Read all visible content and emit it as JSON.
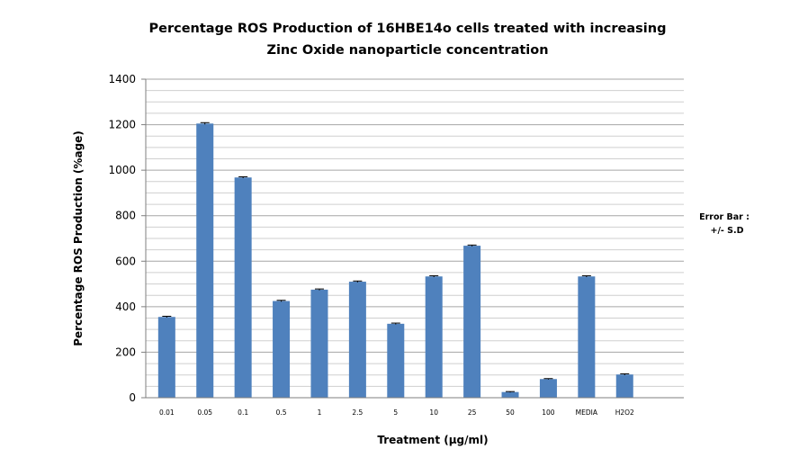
{
  "chart_data": {
    "type": "bar",
    "title": "Percentage ROS Production of 16HBE14o cells treated with increasing Zinc Oxide nanoparticle concentration",
    "title_lines": [
      "Percentage ROS Production of 16HBE14o cells treated with increasing",
      "Zinc Oxide nanoparticle concentration"
    ],
    "xlabel": "Treatment (µg/ml)",
    "ylabel": "Percentage ROS Production (%age)",
    "categories": [
      "0.01",
      "0.05",
      "0.1",
      "0.5",
      "1",
      "2.5",
      "5",
      "10",
      "25",
      "50",
      "100",
      "MEDIA",
      "H2O2"
    ],
    "values": [
      355,
      1205,
      968,
      425,
      475,
      510,
      325,
      533,
      668,
      25,
      82,
      533,
      102
    ],
    "error": [
      3,
      4,
      3,
      3,
      3,
      3,
      3,
      3,
      3,
      2,
      2,
      3,
      3
    ],
    "ylim": [
      0,
      1400
    ],
    "yticks": [
      0,
      200,
      400,
      600,
      800,
      1000,
      1200,
      1400
    ],
    "minor_grid_step": 50,
    "grid": true,
    "bar_color": "#4f81bd",
    "annotation_lines": [
      "Error Bar :",
      "+/- S.D"
    ]
  }
}
